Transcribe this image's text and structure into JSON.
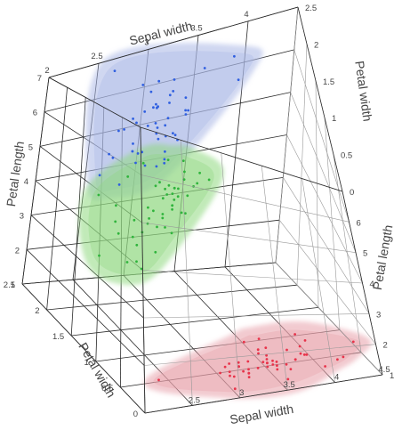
{
  "chart_data": {
    "type": "scatter3d",
    "axes": {
      "sepal_width": {
        "label": "Sepal width",
        "range": [
          2,
          4.5
        ],
        "ticks": [
          "2",
          "2.5",
          "3",
          "3.5",
          "4",
          "4.5"
        ]
      },
      "petal_width": {
        "label": "Petal width",
        "range": [
          0,
          2.5
        ],
        "ticks": [
          "0",
          "0.5",
          "1",
          "1.5",
          "2",
          "2.5"
        ]
      },
      "petal_length": {
        "label": "Petal length",
        "range": [
          1,
          7
        ],
        "ticks": [
          "1",
          "2",
          "3",
          "4",
          "5",
          "6",
          "7"
        ]
      }
    },
    "series": [
      {
        "color": "#e8334a",
        "surface": "#e8a0aa",
        "points": [
          {
            "sw": 3.5,
            "pw": 0.2,
            "pl": 1.4
          },
          {
            "sw": 3.0,
            "pw": 0.2,
            "pl": 1.4
          },
          {
            "sw": 3.2,
            "pw": 0.2,
            "pl": 1.3
          },
          {
            "sw": 3.1,
            "pw": 0.2,
            "pl": 1.5
          },
          {
            "sw": 3.6,
            "pw": 0.2,
            "pl": 1.4
          },
          {
            "sw": 3.9,
            "pw": 0.4,
            "pl": 1.7
          },
          {
            "sw": 3.4,
            "pw": 0.3,
            "pl": 1.4
          },
          {
            "sw": 3.4,
            "pw": 0.2,
            "pl": 1.5
          },
          {
            "sw": 2.9,
            "pw": 0.2,
            "pl": 1.4
          },
          {
            "sw": 3.1,
            "pw": 0.1,
            "pl": 1.5
          },
          {
            "sw": 3.7,
            "pw": 0.2,
            "pl": 1.5
          },
          {
            "sw": 3.4,
            "pw": 0.2,
            "pl": 1.6
          },
          {
            "sw": 3.0,
            "pw": 0.1,
            "pl": 1.4
          },
          {
            "sw": 3.0,
            "pw": 0.1,
            "pl": 1.1
          },
          {
            "sw": 4.0,
            "pw": 0.2,
            "pl": 1.2
          },
          {
            "sw": 4.4,
            "pw": 0.4,
            "pl": 1.5
          },
          {
            "sw": 3.9,
            "pw": 0.4,
            "pl": 1.3
          },
          {
            "sw": 3.5,
            "pw": 0.3,
            "pl": 1.4
          },
          {
            "sw": 3.8,
            "pw": 0.3,
            "pl": 1.7
          },
          {
            "sw": 3.8,
            "pw": 0.3,
            "pl": 1.5
          },
          {
            "sw": 3.4,
            "pw": 0.2,
            "pl": 1.7
          },
          {
            "sw": 3.7,
            "pw": 0.4,
            "pl": 1.5
          },
          {
            "sw": 3.6,
            "pw": 0.2,
            "pl": 1.0
          },
          {
            "sw": 3.3,
            "pw": 0.5,
            "pl": 1.7
          },
          {
            "sw": 3.4,
            "pw": 0.2,
            "pl": 1.9
          },
          {
            "sw": 3.0,
            "pw": 0.2,
            "pl": 1.6
          },
          {
            "sw": 3.4,
            "pw": 0.4,
            "pl": 1.6
          },
          {
            "sw": 3.5,
            "pw": 0.2,
            "pl": 1.5
          },
          {
            "sw": 3.4,
            "pw": 0.2,
            "pl": 1.4
          },
          {
            "sw": 3.2,
            "pw": 0.2,
            "pl": 1.6
          },
          {
            "sw": 3.1,
            "pw": 0.2,
            "pl": 1.6
          },
          {
            "sw": 3.4,
            "pw": 0.4,
            "pl": 1.5
          },
          {
            "sw": 4.1,
            "pw": 0.1,
            "pl": 1.5
          },
          {
            "sw": 4.2,
            "pw": 0.2,
            "pl": 1.4
          },
          {
            "sw": 3.1,
            "pw": 0.2,
            "pl": 1.5
          },
          {
            "sw": 3.2,
            "pw": 0.2,
            "pl": 1.2
          },
          {
            "sw": 3.5,
            "pw": 0.2,
            "pl": 1.3
          },
          {
            "sw": 3.6,
            "pw": 0.1,
            "pl": 1.4
          },
          {
            "sw": 3.0,
            "pw": 0.2,
            "pl": 1.3
          },
          {
            "sw": 3.4,
            "pw": 0.2,
            "pl": 1.5
          },
          {
            "sw": 3.5,
            "pw": 0.3,
            "pl": 1.3
          },
          {
            "sw": 2.3,
            "pw": 0.3,
            "pl": 1.3
          },
          {
            "sw": 3.2,
            "pw": 0.2,
            "pl": 1.3
          },
          {
            "sw": 3.5,
            "pw": 0.6,
            "pl": 1.6
          },
          {
            "sw": 3.8,
            "pw": 0.4,
            "pl": 1.9
          },
          {
            "sw": 3.0,
            "pw": 0.3,
            "pl": 1.4
          },
          {
            "sw": 3.8,
            "pw": 0.2,
            "pl": 1.6
          },
          {
            "sw": 3.2,
            "pw": 0.2,
            "pl": 1.4
          },
          {
            "sw": 3.7,
            "pw": 0.2,
            "pl": 1.5
          },
          {
            "sw": 3.3,
            "pw": 0.2,
            "pl": 1.4
          }
        ]
      },
      {
        "color": "#2fb43c",
        "surface": "#8fd880",
        "points": [
          {
            "sw": 3.2,
            "pw": 1.4,
            "pl": 4.7
          },
          {
            "sw": 3.2,
            "pw": 1.5,
            "pl": 4.5
          },
          {
            "sw": 3.1,
            "pw": 1.5,
            "pl": 4.9
          },
          {
            "sw": 2.3,
            "pw": 1.3,
            "pl": 4.0
          },
          {
            "sw": 2.8,
            "pw": 1.5,
            "pl": 4.6
          },
          {
            "sw": 2.8,
            "pw": 1.3,
            "pl": 4.5
          },
          {
            "sw": 3.3,
            "pw": 1.6,
            "pl": 4.7
          },
          {
            "sw": 2.4,
            "pw": 1.0,
            "pl": 3.3
          },
          {
            "sw": 2.9,
            "pw": 1.3,
            "pl": 4.6
          },
          {
            "sw": 2.7,
            "pw": 1.4,
            "pl": 3.9
          },
          {
            "sw": 2.0,
            "pw": 1.0,
            "pl": 3.5
          },
          {
            "sw": 3.0,
            "pw": 1.5,
            "pl": 4.2
          },
          {
            "sw": 2.2,
            "pw": 1.0,
            "pl": 4.0
          },
          {
            "sw": 2.9,
            "pw": 1.4,
            "pl": 4.7
          },
          {
            "sw": 2.9,
            "pw": 1.3,
            "pl": 3.6
          },
          {
            "sw": 3.1,
            "pw": 1.4,
            "pl": 4.4
          },
          {
            "sw": 3.0,
            "pw": 1.5,
            "pl": 4.5
          },
          {
            "sw": 2.7,
            "pw": 1.0,
            "pl": 4.1
          },
          {
            "sw": 2.2,
            "pw": 1.5,
            "pl": 4.5
          },
          {
            "sw": 2.5,
            "pw": 1.1,
            "pl": 3.9
          },
          {
            "sw": 3.2,
            "pw": 1.8,
            "pl": 4.8
          },
          {
            "sw": 2.8,
            "pw": 1.3,
            "pl": 4.0
          },
          {
            "sw": 2.5,
            "pw": 1.5,
            "pl": 4.9
          },
          {
            "sw": 2.8,
            "pw": 1.2,
            "pl": 4.7
          },
          {
            "sw": 2.9,
            "pw": 1.3,
            "pl": 4.3
          },
          {
            "sw": 3.0,
            "pw": 1.4,
            "pl": 4.4
          },
          {
            "sw": 2.8,
            "pw": 1.4,
            "pl": 4.8
          },
          {
            "sw": 3.0,
            "pw": 1.7,
            "pl": 5.0
          },
          {
            "sw": 2.9,
            "pw": 1.5,
            "pl": 4.5
          },
          {
            "sw": 2.6,
            "pw": 1.0,
            "pl": 3.5
          },
          {
            "sw": 2.4,
            "pw": 1.1,
            "pl": 3.8
          },
          {
            "sw": 2.4,
            "pw": 1.0,
            "pl": 3.7
          },
          {
            "sw": 2.7,
            "pw": 1.2,
            "pl": 3.9
          },
          {
            "sw": 2.7,
            "pw": 1.6,
            "pl": 5.1
          },
          {
            "sw": 3.0,
            "pw": 1.5,
            "pl": 4.5
          },
          {
            "sw": 3.4,
            "pw": 1.6,
            "pl": 4.5
          },
          {
            "sw": 3.1,
            "pw": 1.5,
            "pl": 4.7
          },
          {
            "sw": 2.3,
            "pw": 1.3,
            "pl": 4.4
          },
          {
            "sw": 3.0,
            "pw": 1.3,
            "pl": 4.1
          },
          {
            "sw": 2.5,
            "pw": 1.3,
            "pl": 4.0
          },
          {
            "sw": 2.6,
            "pw": 1.2,
            "pl": 4.4
          },
          {
            "sw": 3.0,
            "pw": 1.4,
            "pl": 4.6
          },
          {
            "sw": 2.6,
            "pw": 1.2,
            "pl": 4.0
          },
          {
            "sw": 2.3,
            "pw": 1.0,
            "pl": 3.3
          },
          {
            "sw": 2.7,
            "pw": 1.3,
            "pl": 4.2
          },
          {
            "sw": 3.0,
            "pw": 1.2,
            "pl": 4.2
          },
          {
            "sw": 2.9,
            "pw": 1.3,
            "pl": 4.2
          },
          {
            "sw": 2.9,
            "pw": 1.3,
            "pl": 4.3
          },
          {
            "sw": 2.5,
            "pw": 1.1,
            "pl": 3.0
          },
          {
            "sw": 2.8,
            "pw": 1.3,
            "pl": 4.1
          }
        ]
      },
      {
        "color": "#2f5fe0",
        "surface": "#a9b6e6",
        "points": [
          {
            "sw": 3.3,
            "pw": 2.5,
            "pl": 6.0
          },
          {
            "sw": 2.7,
            "pw": 1.9,
            "pl": 5.1
          },
          {
            "sw": 3.0,
            "pw": 2.1,
            "pl": 5.9
          },
          {
            "sw": 2.9,
            "pw": 1.8,
            "pl": 5.6
          },
          {
            "sw": 3.0,
            "pw": 2.2,
            "pl": 5.8
          },
          {
            "sw": 3.0,
            "pw": 2.1,
            "pl": 6.6
          },
          {
            "sw": 2.5,
            "pw": 1.7,
            "pl": 4.5
          },
          {
            "sw": 2.9,
            "pw": 1.8,
            "pl": 6.3
          },
          {
            "sw": 2.5,
            "pw": 1.8,
            "pl": 5.8
          },
          {
            "sw": 3.6,
            "pw": 2.5,
            "pl": 6.1
          },
          {
            "sw": 3.2,
            "pw": 2.0,
            "pl": 5.1
          },
          {
            "sw": 2.7,
            "pw": 1.9,
            "pl": 5.3
          },
          {
            "sw": 3.0,
            "pw": 2.1,
            "pl": 5.5
          },
          {
            "sw": 2.5,
            "pw": 2.0,
            "pl": 5.0
          },
          {
            "sw": 2.8,
            "pw": 2.4,
            "pl": 5.1
          },
          {
            "sw": 3.2,
            "pw": 2.3,
            "pl": 5.3
          },
          {
            "sw": 3.0,
            "pw": 1.8,
            "pl": 5.5
          },
          {
            "sw": 3.8,
            "pw": 2.2,
            "pl": 6.7
          },
          {
            "sw": 2.6,
            "pw": 2.3,
            "pl": 6.9
          },
          {
            "sw": 2.2,
            "pw": 1.5,
            "pl": 5.0
          },
          {
            "sw": 3.2,
            "pw": 2.3,
            "pl": 5.7
          },
          {
            "sw": 2.8,
            "pw": 2.0,
            "pl": 4.9
          },
          {
            "sw": 2.8,
            "pw": 2.0,
            "pl": 6.7
          },
          {
            "sw": 2.7,
            "pw": 1.8,
            "pl": 4.9
          },
          {
            "sw": 3.3,
            "pw": 2.1,
            "pl": 5.7
          },
          {
            "sw": 3.2,
            "pw": 1.8,
            "pl": 6.0
          },
          {
            "sw": 2.8,
            "pw": 1.8,
            "pl": 4.8
          },
          {
            "sw": 3.0,
            "pw": 1.8,
            "pl": 4.9
          },
          {
            "sw": 2.8,
            "pw": 2.1,
            "pl": 5.6
          },
          {
            "sw": 3.0,
            "pw": 1.6,
            "pl": 5.8
          },
          {
            "sw": 2.8,
            "pw": 1.9,
            "pl": 6.1
          },
          {
            "sw": 3.8,
            "pw": 2.0,
            "pl": 6.4
          },
          {
            "sw": 2.8,
            "pw": 2.2,
            "pl": 5.6
          },
          {
            "sw": 2.8,
            "pw": 1.5,
            "pl": 5.1
          },
          {
            "sw": 2.6,
            "pw": 1.4,
            "pl": 5.6
          },
          {
            "sw": 3.0,
            "pw": 2.3,
            "pl": 6.1
          },
          {
            "sw": 3.4,
            "pw": 2.4,
            "pl": 5.6
          },
          {
            "sw": 3.1,
            "pw": 1.8,
            "pl": 5.5
          },
          {
            "sw": 3.0,
            "pw": 1.8,
            "pl": 4.8
          },
          {
            "sw": 3.1,
            "pw": 2.1,
            "pl": 5.4
          },
          {
            "sw": 3.1,
            "pw": 2.4,
            "pl": 5.6
          },
          {
            "sw": 3.1,
            "pw": 2.3,
            "pl": 5.1
          },
          {
            "sw": 2.7,
            "pw": 1.9,
            "pl": 5.1
          },
          {
            "sw": 3.2,
            "pw": 2.3,
            "pl": 5.9
          },
          {
            "sw": 3.3,
            "pw": 2.5,
            "pl": 5.7
          },
          {
            "sw": 3.0,
            "pw": 2.3,
            "pl": 5.2
          },
          {
            "sw": 2.5,
            "pw": 1.9,
            "pl": 5.0
          },
          {
            "sw": 3.0,
            "pw": 2.0,
            "pl": 5.2
          },
          {
            "sw": 3.4,
            "pw": 2.3,
            "pl": 5.4
          },
          {
            "sw": 3.0,
            "pw": 1.8,
            "pl": 5.1
          }
        ]
      }
    ],
    "background": "#ffffff"
  }
}
